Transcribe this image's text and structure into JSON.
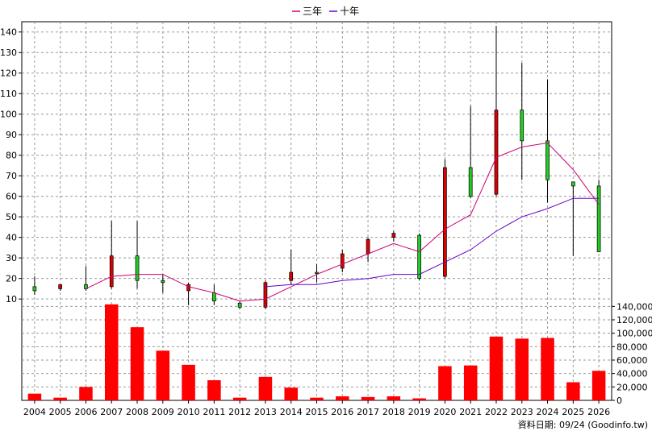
{
  "chart_data": {
    "type": "candlestick",
    "legend": {
      "placement": "top-center",
      "items": [
        {
          "label": "三年",
          "color": "#cc0077"
        },
        {
          "label": "十年",
          "color": "#6600cc"
        }
      ]
    },
    "source_note": "資料日期: 09/24 (Goodinfo.tw)",
    "years": [
      "2004",
      "2005",
      "2006",
      "2007",
      "2008",
      "2009",
      "2010",
      "2011",
      "2012",
      "2013",
      "2014",
      "2015",
      "2016",
      "2017",
      "2018",
      "2019",
      "2020",
      "2021",
      "2022",
      "2023",
      "2024",
      "2025",
      "2026"
    ],
    "price_axis": {
      "min": 3,
      "max": 145,
      "ticks": [
        10,
        20,
        30,
        40,
        50,
        60,
        70,
        80,
        90,
        100,
        110,
        120,
        130,
        140
      ]
    },
    "volume_axis": {
      "min": 0,
      "max": 150000,
      "ticks": [
        0,
        20000,
        40000,
        60000,
        80000,
        100000,
        120000,
        140000
      ],
      "tick_labels": [
        "0",
        "20,000",
        "40,000",
        "60,000",
        "80,000",
        "100,000",
        "120,000",
        "140,000"
      ]
    },
    "candles": [
      {
        "year": "2004",
        "open": 14,
        "high": 21,
        "low": 12,
        "close": 16
      },
      {
        "year": "2005",
        "open": 17,
        "high": 17,
        "low": 14,
        "close": 15
      },
      {
        "year": "2006",
        "open": 15,
        "high": 26,
        "low": 14,
        "close": 17
      },
      {
        "year": "2007",
        "open": 31,
        "high": 48,
        "low": 15,
        "close": 16
      },
      {
        "year": "2008",
        "open": 19,
        "high": 48,
        "low": 15,
        "close": 31
      },
      {
        "year": "2009",
        "open": 18,
        "high": 22,
        "low": 13,
        "close": 19
      },
      {
        "year": "2010",
        "open": 17,
        "high": 18,
        "low": 7,
        "close": 14
      },
      {
        "year": "2011",
        "open": 9,
        "high": 17,
        "low": 7,
        "close": 13
      },
      {
        "year": "2012",
        "open": 6,
        "high": 9,
        "low": 5,
        "close": 8
      },
      {
        "year": "2013",
        "open": 18,
        "high": 19,
        "low": 5,
        "close": 6
      },
      {
        "year": "2014",
        "open": 23,
        "high": 34,
        "low": 17,
        "close": 19
      },
      {
        "year": "2015",
        "open": 23,
        "high": 27,
        "low": 18,
        "close": 23
      },
      {
        "year": "2016",
        "open": 32,
        "high": 34,
        "low": 23,
        "close": 25
      },
      {
        "year": "2017",
        "open": 39,
        "high": 40,
        "low": 28,
        "close": 32
      },
      {
        "year": "2018",
        "open": 42,
        "high": 43,
        "low": 38,
        "close": 40
      },
      {
        "year": "2019",
        "open": 20,
        "high": 42,
        "low": 19,
        "close": 41
      },
      {
        "year": "2020",
        "open": 74,
        "high": 78,
        "low": 20,
        "close": 21
      },
      {
        "year": "2021",
        "open": 60,
        "high": 104,
        "low": 59,
        "close": 74
      },
      {
        "year": "2022",
        "open": 102,
        "high": 143,
        "low": 60,
        "close": 61
      },
      {
        "year": "2023",
        "open": 87,
        "high": 125,
        "low": 68,
        "close": 102
      },
      {
        "year": "2024",
        "open": 68,
        "high": 117,
        "low": 57,
        "close": 87
      },
      {
        "year": "2025",
        "open": 65,
        "high": 67,
        "low": 31,
        "close": 67
      },
      {
        "year": "2026",
        "open": 33,
        "high": 68,
        "low": 33,
        "close": 65
      }
    ],
    "series": [
      {
        "name": "三年",
        "color": "#cc0077",
        "start_year": "2006",
        "values": [
          15,
          21,
          22,
          22,
          16,
          13,
          9,
          10,
          16,
          22,
          27,
          32,
          37,
          33,
          44,
          51,
          79,
          84,
          86,
          73,
          56
        ]
      },
      {
        "name": "十年",
        "color": "#6600cc",
        "start_year": "2013",
        "values": [
          16,
          17,
          17,
          19,
          20,
          22,
          22,
          28,
          34,
          43,
          50,
          54,
          59,
          59
        ]
      }
    ],
    "volume": {
      "color": "#ff0000",
      "values": [
        10000,
        4000,
        20000,
        143000,
        109000,
        74000,
        53000,
        30000,
        4000,
        35000,
        19000,
        4000,
        6000,
        5000,
        6000,
        3000,
        51000,
        52000,
        95000,
        92000,
        93000,
        27000,
        44000
      ]
    }
  }
}
